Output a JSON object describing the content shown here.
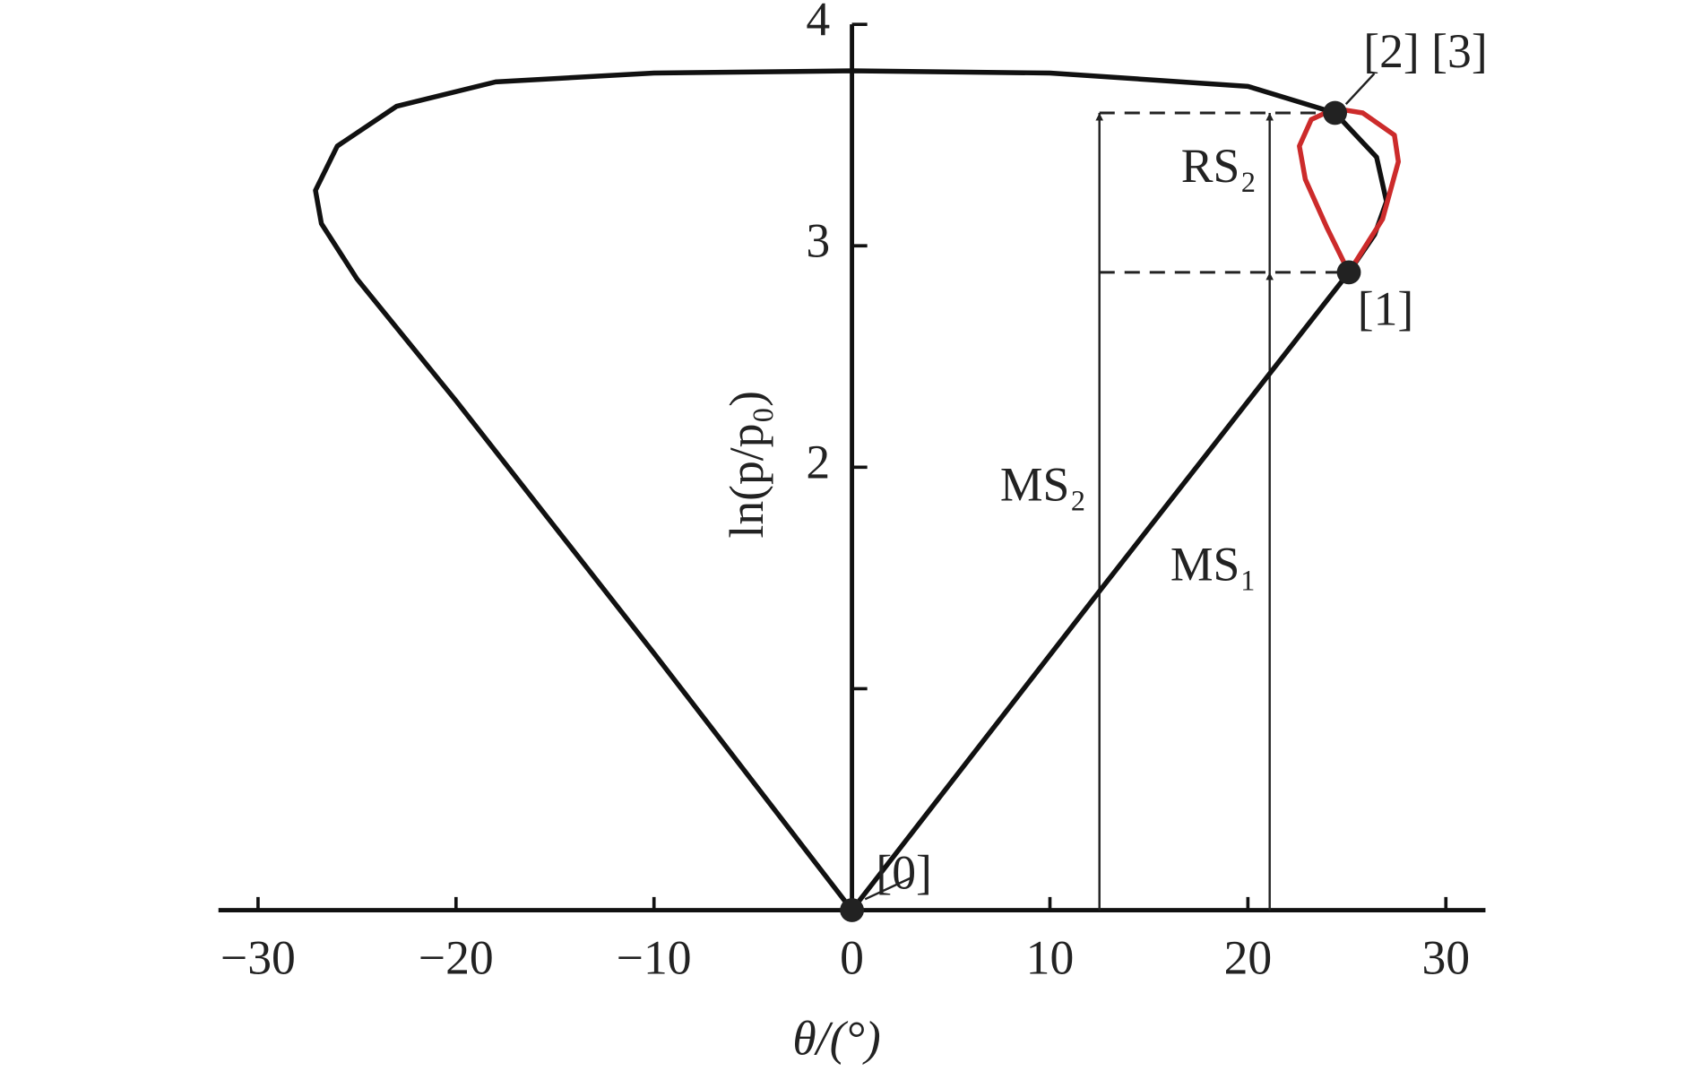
{
  "chart_data": {
    "type": "line",
    "xlabel": "θ/(°)",
    "ylabel": "ln(p/p₀)",
    "xlim": [
      -32,
      32
    ],
    "ylim": [
      0,
      4
    ],
    "xticks": [
      {
        "value": -30,
        "label": "−30"
      },
      {
        "value": -20,
        "label": "−20"
      },
      {
        "value": -10,
        "label": "−10"
      },
      0,
      10,
      20,
      30
    ],
    "yticks": [
      {
        "value": 1,
        "label": null
      },
      2,
      3,
      4
    ],
    "series": [
      {
        "color": "#111111",
        "x": [
          0,
          12.5,
          25.1,
          26.4,
          27.0,
          26.5,
          24.4,
          20,
          10,
          0,
          -10,
          -18,
          -23,
          -26,
          -27.1,
          -26.8,
          -25,
          -20,
          -10,
          0
        ],
        "values": [
          0,
          1.44,
          2.88,
          3.05,
          3.2,
          3.4,
          3.6,
          3.72,
          3.78,
          3.79,
          3.78,
          3.74,
          3.63,
          3.45,
          3.25,
          3.1,
          2.85,
          2.3,
          1.16,
          0
        ]
      },
      {
        "color": "#cc2b2b",
        "x": [
          25.1,
          24.0,
          22.9,
          22.6,
          23.2,
          24.4,
          25.8,
          27.4,
          27.6,
          26.8,
          25.1
        ],
        "values": [
          2.88,
          3.08,
          3.3,
          3.45,
          3.57,
          3.62,
          3.6,
          3.5,
          3.38,
          3.12,
          2.88
        ]
      }
    ],
    "points": [
      {
        "label": "[0]",
        "x": 0,
        "y": 0
      },
      {
        "label": "[1]",
        "x": 25.1,
        "y": 2.88
      },
      {
        "label": "[2] [3]",
        "x": 24.4,
        "y": 3.6
      }
    ],
    "dashed": [
      {
        "y": 3.6,
        "x": [
          12.5,
          24.4
        ]
      },
      {
        "y": 2.88,
        "x": [
          12.5,
          25.1
        ]
      }
    ],
    "arrows": [
      {
        "label": "MS₂",
        "x": 12.5,
        "from": 0,
        "to": 3.6
      },
      {
        "label": "MS₁",
        "x": 21.1,
        "from": 0,
        "to": 2.88
      },
      {
        "label": "RS₂",
        "x": 21.1,
        "from": 2.88,
        "to": 3.6
      }
    ]
  }
}
